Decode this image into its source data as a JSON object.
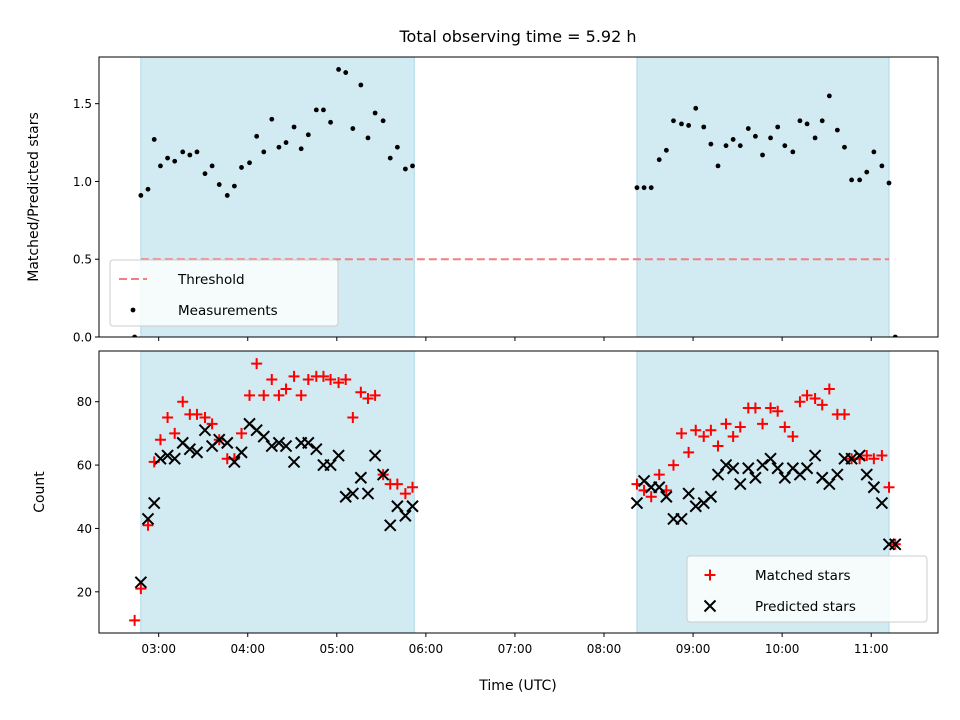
{
  "chart_data": {
    "type": "scatter",
    "title": "Total observing time = 5.92 h",
    "xlabel": "Time (UTC)",
    "x_units": "hours UTC",
    "xlim": [
      2.33,
      11.75
    ],
    "xticks": [
      {
        "value": 3,
        "label": "03:00"
      },
      {
        "value": 4,
        "label": "04:00"
      },
      {
        "value": 5,
        "label": "05:00"
      },
      {
        "value": 6,
        "label": "06:00"
      },
      {
        "value": 7,
        "label": "07:00"
      },
      {
        "value": 8,
        "label": "08:00"
      },
      {
        "value": 9,
        "label": "09:00"
      },
      {
        "value": 10,
        "label": "10:00"
      },
      {
        "value": 11,
        "label": "11:00"
      }
    ],
    "shaded_intervals": [
      [
        2.8,
        5.87
      ],
      [
        8.37,
        11.2
      ]
    ],
    "shade_color": "#add8e6",
    "panels": [
      {
        "id": "ratio",
        "ylabel": "Matched/Predicted stars",
        "ylim": [
          0,
          1.8
        ],
        "yticks": [
          {
            "value": 0.0,
            "label": "0.0"
          },
          {
            "value": 0.5,
            "label": "0.5"
          },
          {
            "value": 1.0,
            "label": "1.0"
          },
          {
            "value": 1.5,
            "label": "1.5"
          }
        ],
        "lines": [
          {
            "name": "Threshold",
            "y": 0.5,
            "x_range": [
              2.8,
              11.2
            ],
            "color": "#f08080",
            "style": "dashed"
          }
        ],
        "series": [
          {
            "name": "Measurements",
            "marker": "dot",
            "color": "#000000",
            "x": [
              2.73,
              2.8,
              2.88,
              2.95,
              3.02,
              3.1,
              3.18,
              3.27,
              3.35,
              3.43,
              3.52,
              3.6,
              3.68,
              3.77,
              3.85,
              3.93,
              4.02,
              4.1,
              4.18,
              4.27,
              4.35,
              4.43,
              4.52,
              4.6,
              4.68,
              4.77,
              4.85,
              4.93,
              5.02,
              5.1,
              5.18,
              5.27,
              5.35,
              5.43,
              5.52,
              5.6,
              5.68,
              5.77,
              5.85,
              8.37,
              8.45,
              8.53,
              8.62,
              8.7,
              8.78,
              8.87,
              8.95,
              9.03,
              9.12,
              9.2,
              9.28,
              9.37,
              9.45,
              9.53,
              9.62,
              9.7,
              9.78,
              9.87,
              9.95,
              10.03,
              10.12,
              10.2,
              10.28,
              10.37,
              10.45,
              10.53,
              10.62,
              10.7,
              10.78,
              10.87,
              10.95,
              11.03,
              11.12,
              11.2,
              11.27
            ],
            "y": [
              0.0,
              0.91,
              0.95,
              1.27,
              1.1,
              1.15,
              1.13,
              1.19,
              1.17,
              1.19,
              1.05,
              1.1,
              0.98,
              0.91,
              0.97,
              1.09,
              1.12,
              1.29,
              1.19,
              1.4,
              1.22,
              1.25,
              1.35,
              1.21,
              1.3,
              1.46,
              1.46,
              1.38,
              1.72,
              1.7,
              1.34,
              1.62,
              1.28,
              1.44,
              1.39,
              1.15,
              1.22,
              1.08,
              1.1,
              0.96,
              0.96,
              0.96,
              1.14,
              1.2,
              1.39,
              1.37,
              1.36,
              1.47,
              1.35,
              1.24,
              1.1,
              1.23,
              1.27,
              1.23,
              1.34,
              1.29,
              1.17,
              1.28,
              1.35,
              1.23,
              1.19,
              1.39,
              1.37,
              1.28,
              1.39,
              1.55,
              1.33,
              1.22,
              1.01,
              1.01,
              1.06,
              1.19,
              1.1,
              0.99,
              0.0
            ]
          }
        ],
        "legend": {
          "placement": "lower left",
          "entries": [
            "Threshold",
            "Measurements"
          ]
        }
      },
      {
        "id": "counts",
        "ylabel": "Count",
        "ylim": [
          7,
          96
        ],
        "yticks": [
          {
            "value": 20,
            "label": "20"
          },
          {
            "value": 40,
            "label": "40"
          },
          {
            "value": 60,
            "label": "60"
          },
          {
            "value": 80,
            "label": "80"
          }
        ],
        "series": [
          {
            "name": "Matched stars",
            "marker": "plus",
            "color": "#ff0000",
            "x": [
              2.73,
              2.8,
              2.88,
              2.95,
              3.02,
              3.1,
              3.18,
              3.27,
              3.35,
              3.43,
              3.52,
              3.6,
              3.68,
              3.77,
              3.85,
              3.93,
              4.02,
              4.1,
              4.18,
              4.27,
              4.35,
              4.43,
              4.52,
              4.6,
              4.68,
              4.77,
              4.85,
              4.93,
              5.02,
              5.1,
              5.18,
              5.27,
              5.35,
              5.43,
              5.52,
              5.6,
              5.68,
              5.77,
              5.85,
              8.37,
              8.45,
              8.53,
              8.62,
              8.7,
              8.78,
              8.87,
              8.95,
              9.03,
              9.12,
              9.2,
              9.28,
              9.37,
              9.45,
              9.53,
              9.62,
              9.7,
              9.78,
              9.87,
              9.95,
              10.03,
              10.12,
              10.2,
              10.28,
              10.37,
              10.45,
              10.53,
              10.62,
              10.7,
              10.78,
              10.87,
              10.95,
              11.03,
              11.12,
              11.2,
              11.27
            ],
            "y": [
              11,
              21,
              41,
              61,
              68,
              75,
              70,
              80,
              76,
              76,
              75,
              73,
              68,
              62,
              62,
              70,
              82,
              92,
              82,
              87,
              82,
              84,
              88,
              82,
              87,
              88,
              88,
              87,
              86,
              87,
              75,
              83,
              81,
              82,
              57,
              54,
              54,
              51,
              53,
              54,
              52,
              50,
              57,
              52,
              60,
              70,
              64,
              71,
              69,
              71,
              66,
              73,
              69,
              72,
              78,
              78,
              73,
              78,
              77,
              72,
              69,
              80,
              82,
              81,
              79,
              84,
              76,
              76,
              62,
              62,
              63,
              62,
              63,
              53,
              35
            ]
          },
          {
            "name": "Predicted stars",
            "marker": "x",
            "color": "#000000",
            "x": [
              2.8,
              2.88,
              2.95,
              3.02,
              3.1,
              3.18,
              3.27,
              3.35,
              3.43,
              3.52,
              3.6,
              3.68,
              3.77,
              3.85,
              3.93,
              4.02,
              4.1,
              4.18,
              4.27,
              4.35,
              4.43,
              4.52,
              4.6,
              4.68,
              4.77,
              4.85,
              4.93,
              5.02,
              5.1,
              5.18,
              5.27,
              5.35,
              5.43,
              5.52,
              5.6,
              5.68,
              5.77,
              5.85,
              8.37,
              8.45,
              8.53,
              8.62,
              8.7,
              8.78,
              8.87,
              8.95,
              9.03,
              9.12,
              9.2,
              9.28,
              9.37,
              9.45,
              9.53,
              9.62,
              9.7,
              9.78,
              9.87,
              9.95,
              10.03,
              10.12,
              10.2,
              10.28,
              10.37,
              10.45,
              10.53,
              10.62,
              10.7,
              10.78,
              10.87,
              10.95,
              11.03,
              11.12,
              11.2,
              11.27
            ],
            "y": [
              23,
              43,
              48,
              62,
              63,
              62,
              67,
              65,
              64,
              71,
              66,
              68,
              67,
              61,
              64,
              73,
              71,
              69,
              66,
              67,
              66,
              61,
              67,
              67,
              65,
              60,
              60,
              63,
              50,
              51,
              56,
              51,
              63,
              57,
              41,
              47,
              44,
              47,
              48,
              55,
              53,
              53,
              50,
              43,
              43,
              51,
              47,
              48,
              50,
              57,
              60,
              59,
              54,
              59,
              56,
              60,
              62,
              59,
              56,
              59,
              57,
              59,
              63,
              56,
              54,
              57,
              62,
              62,
              63,
              57,
              53,
              48,
              35,
              35
            ]
          }
        ],
        "legend": {
          "placement": "lower right",
          "entries": [
            "Matched stars",
            "Predicted stars"
          ]
        }
      }
    ]
  }
}
